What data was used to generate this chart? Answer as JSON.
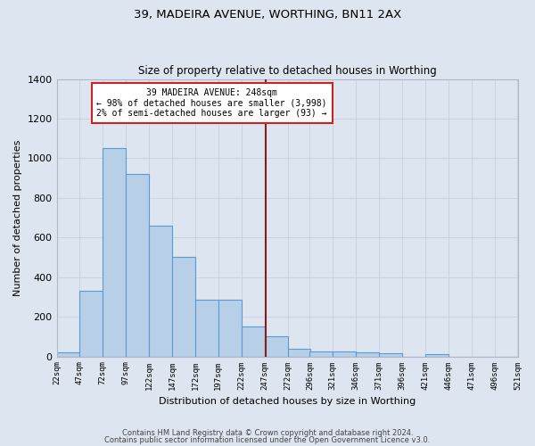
{
  "title1": "39, MADEIRA AVENUE, WORTHING, BN11 2AX",
  "title2": "Size of property relative to detached houses in Worthing",
  "xlabel": "Distribution of detached houses by size in Worthing",
  "ylabel": "Number of detached properties",
  "bar_edges": [
    22,
    47,
    72,
    97,
    122,
    147,
    172,
    197,
    222,
    247,
    272,
    296,
    321,
    346,
    371,
    396,
    421,
    446,
    471,
    496,
    521
  ],
  "bar_heights": [
    20,
    330,
    1050,
    920,
    660,
    500,
    285,
    285,
    150,
    100,
    40,
    25,
    25,
    20,
    15,
    0,
    12,
    0,
    0,
    0
  ],
  "bar_color": "#b8cfe8",
  "bar_edge_color": "#5b9bd5",
  "background_color": "#dde5f0",
  "grid_color": "#c8d0e0",
  "vline_x": 248,
  "vline_color": "#8b1a1a",
  "annotation_text": "39 MADEIRA AVENUE: 248sqm\n← 98% of detached houses are smaller (3,998)\n2% of semi-detached houses are larger (93) →",
  "annotation_box_facecolor": "#ffffff",
  "annotation_border_color": "#cc2222",
  "ylim": [
    0,
    1400
  ],
  "yticks": [
    0,
    200,
    400,
    600,
    800,
    1000,
    1200,
    1400
  ],
  "footer1": "Contains HM Land Registry data © Crown copyright and database right 2024.",
  "footer2": "Contains public sector information licensed under the Open Government Licence v3.0."
}
